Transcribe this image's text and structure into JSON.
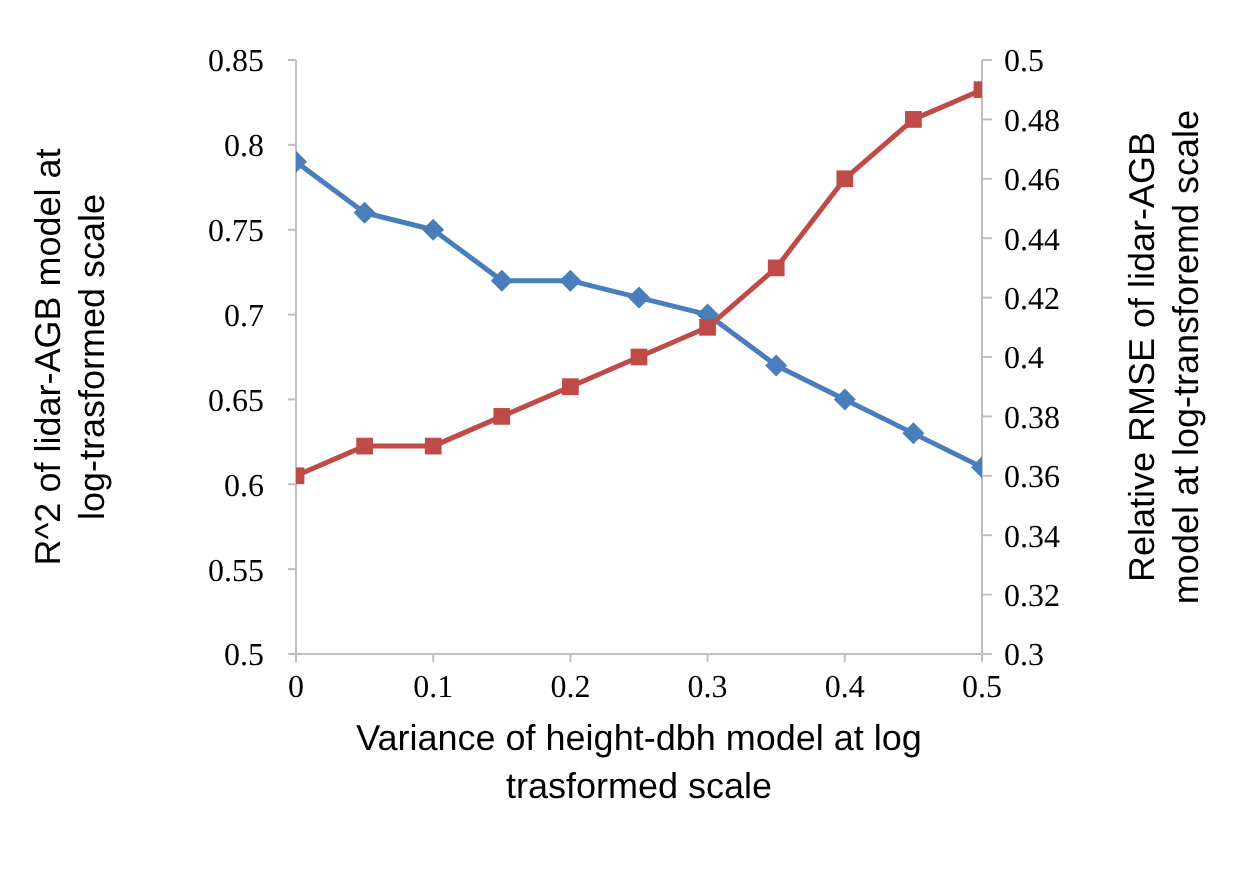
{
  "chart_data": {
    "type": "line",
    "xlabel": "Variance of height-dbh model at log trasformed scale",
    "ylabel": "R^2 of lidar-AGB model at log-trasformed scale",
    "y2label": "Relative RMSE of lidar-AGB model at log-transforemd scale",
    "x": [
      0,
      0.05,
      0.1,
      0.15,
      0.2,
      0.25,
      0.3,
      0.35,
      0.4,
      0.45,
      0.5
    ],
    "series": [
      {
        "color": "#4a7ebb",
        "marker": "diamond",
        "values": [
          0.79,
          0.76,
          0.75,
          0.72,
          0.72,
          0.71,
          0.7,
          0.67,
          0.65,
          0.63,
          0.61
        ]
      },
      {
        "color": "#be4b48",
        "marker": "square",
        "axis": "y2",
        "values": [
          0.36,
          0.37,
          0.37,
          0.38,
          0.39,
          0.4,
          0.41,
          0.43,
          0.46,
          0.48,
          0.49
        ]
      }
    ],
    "xlim": [
      0,
      0.5
    ],
    "xticks": [
      0,
      0.1,
      0.2,
      0.3,
      0.4,
      0.5
    ],
    "ylim": [
      0.5,
      0.85
    ],
    "yticks": [
      0.5,
      0.55,
      0.6,
      0.65,
      0.7,
      0.75,
      0.8,
      0.85
    ],
    "y2lim": [
      0.3,
      0.5
    ],
    "y2ticks": [
      0.3,
      0.32,
      0.34,
      0.36,
      0.38,
      0.4,
      0.42,
      0.44,
      0.46,
      0.48,
      0.5
    ],
    "grid": false,
    "line_style": "solid"
  }
}
